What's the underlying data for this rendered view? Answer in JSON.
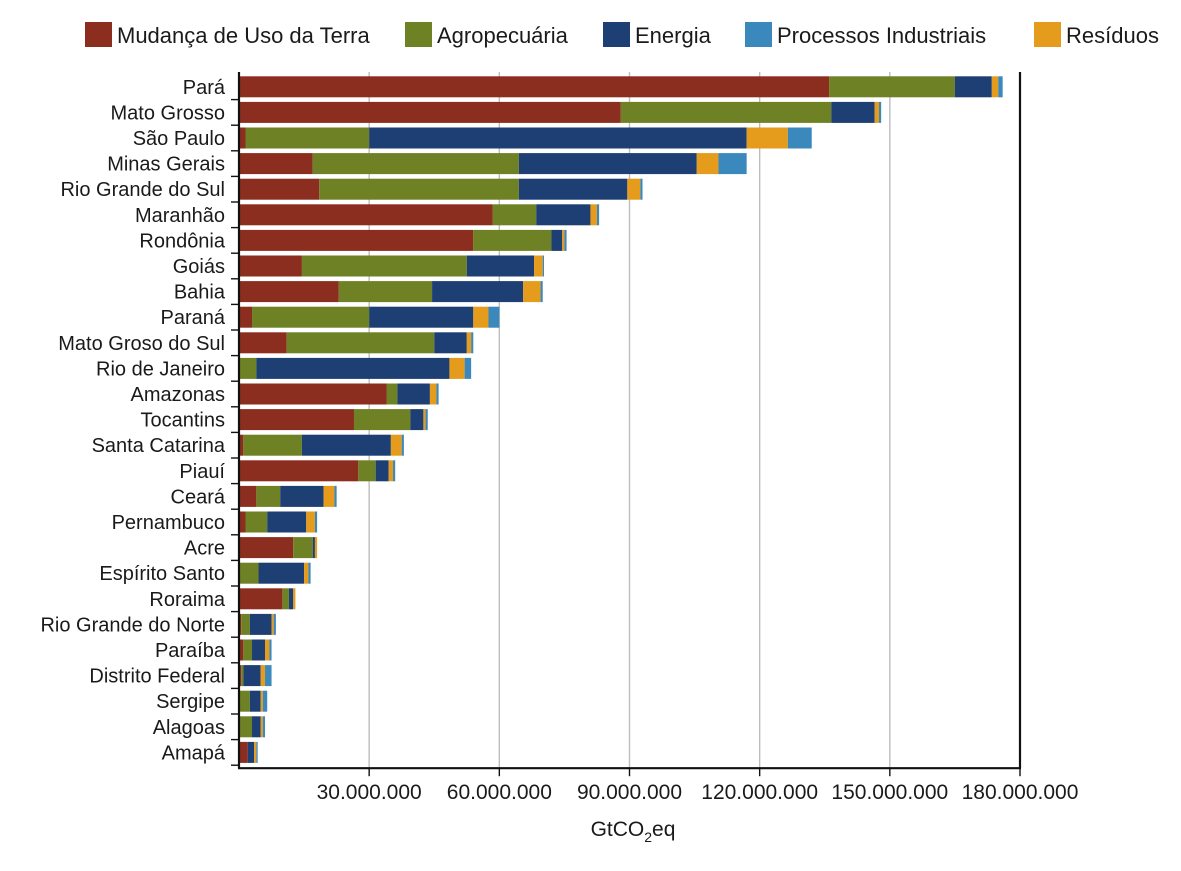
{
  "chart_data": {
    "type": "bar",
    "orientation": "horizontal",
    "stacked": true,
    "title": "",
    "xlabel": {
      "prefix": "GtCO",
      "subscript": "2",
      "suffix": "eq"
    },
    "ylabel": "",
    "xlim": [
      0,
      180000000
    ],
    "xticks": [
      30000000,
      60000000,
      90000000,
      120000000,
      150000000,
      180000000
    ],
    "xtick_labels": [
      "30.000.000",
      "60.000.000",
      "90.000.000",
      "120.000.000",
      "150.000.000",
      "180.000.000"
    ],
    "grid": "vertical",
    "legend_position": "top",
    "categories": [
      "Pará",
      "Mato Grosso",
      "São Paulo",
      "Minas Gerais",
      "Rio Grande do Sul",
      "Maranhão",
      "Rondônia",
      "Goiás",
      "Bahia",
      "Paraná",
      "Mato Groso do Sul",
      "Rio de Janeiro",
      "Amazonas",
      "Tocantins",
      "Santa Catarina",
      "Piauí",
      "Ceará",
      "Pernambuco",
      "Acre",
      "Espírito Santo",
      "Roraima",
      "Rio Grande do Norte",
      "Paraíba",
      "Distrito Federal",
      "Sergipe",
      "Alagoas",
      "Amapá"
    ],
    "series": [
      {
        "name": "Mudança de Uso da Terra",
        "color": "#8b2d1f",
        "values": [
          136000000,
          88000000,
          1500000,
          17000000,
          18500000,
          58500000,
          54000000,
          14500000,
          23000000,
          3000000,
          11000000,
          0,
          34000000,
          26500000,
          1000000,
          27500000,
          4000000,
          1500000,
          12500000,
          0,
          10000000,
          500000,
          1000000,
          500000,
          0,
          0,
          2000000
        ]
      },
      {
        "name": "Agropecuária",
        "color": "#6f8125",
        "values": [
          29000000,
          48500000,
          28500000,
          47500000,
          46000000,
          10000000,
          18000000,
          38000000,
          21500000,
          27000000,
          34000000,
          4000000,
          2500000,
          13000000,
          13500000,
          4000000,
          5500000,
          5000000,
          4500000,
          4500000,
          1500000,
          2000000,
          2000000,
          500000,
          2500000,
          3000000,
          0
        ]
      },
      {
        "name": "Energia",
        "color": "#1d3f73",
        "values": [
          8500000,
          10000000,
          87000000,
          41000000,
          25000000,
          12500000,
          2500000,
          15500000,
          21000000,
          24000000,
          7500000,
          44500000,
          7500000,
          3000000,
          20500000,
          3000000,
          10000000,
          9000000,
          500000,
          10500000,
          1000000,
          5000000,
          3000000,
          4000000,
          2500000,
          2000000,
          1500000
        ]
      },
      {
        "name": "Resíduos",
        "color": "#e59b1c",
        "values": [
          1500000,
          1000000,
          9500000,
          5000000,
          3000000,
          1500000,
          500000,
          2000000,
          4000000,
          3500000,
          1000000,
          3500000,
          1500000,
          500000,
          2500000,
          1000000,
          2500000,
          2000000,
          500000,
          1000000,
          500000,
          500000,
          1000000,
          1000000,
          500000,
          500000,
          500000
        ]
      },
      {
        "name": "Processos Industriais",
        "color": "#3b88bd",
        "values": [
          1000000,
          500000,
          5500000,
          6500000,
          500000,
          500000,
          500000,
          300000,
          500000,
          2500000,
          500000,
          1500000,
          500000,
          500000,
          500000,
          500000,
          500000,
          500000,
          0,
          500000,
          0,
          500000,
          500000,
          1500000,
          1000000,
          500000,
          300000
        ]
      }
    ],
    "legend": [
      {
        "name": "Mudança de Uso da Terra",
        "color": "#8b2d1f"
      },
      {
        "name": "Agropecuária",
        "color": "#6f8125"
      },
      {
        "name": "Energia",
        "color": "#1d3f73"
      },
      {
        "name": "Processos Industriais",
        "color": "#3b88bd"
      },
      {
        "name": "Resíduos",
        "color": "#e59b1c"
      }
    ]
  }
}
